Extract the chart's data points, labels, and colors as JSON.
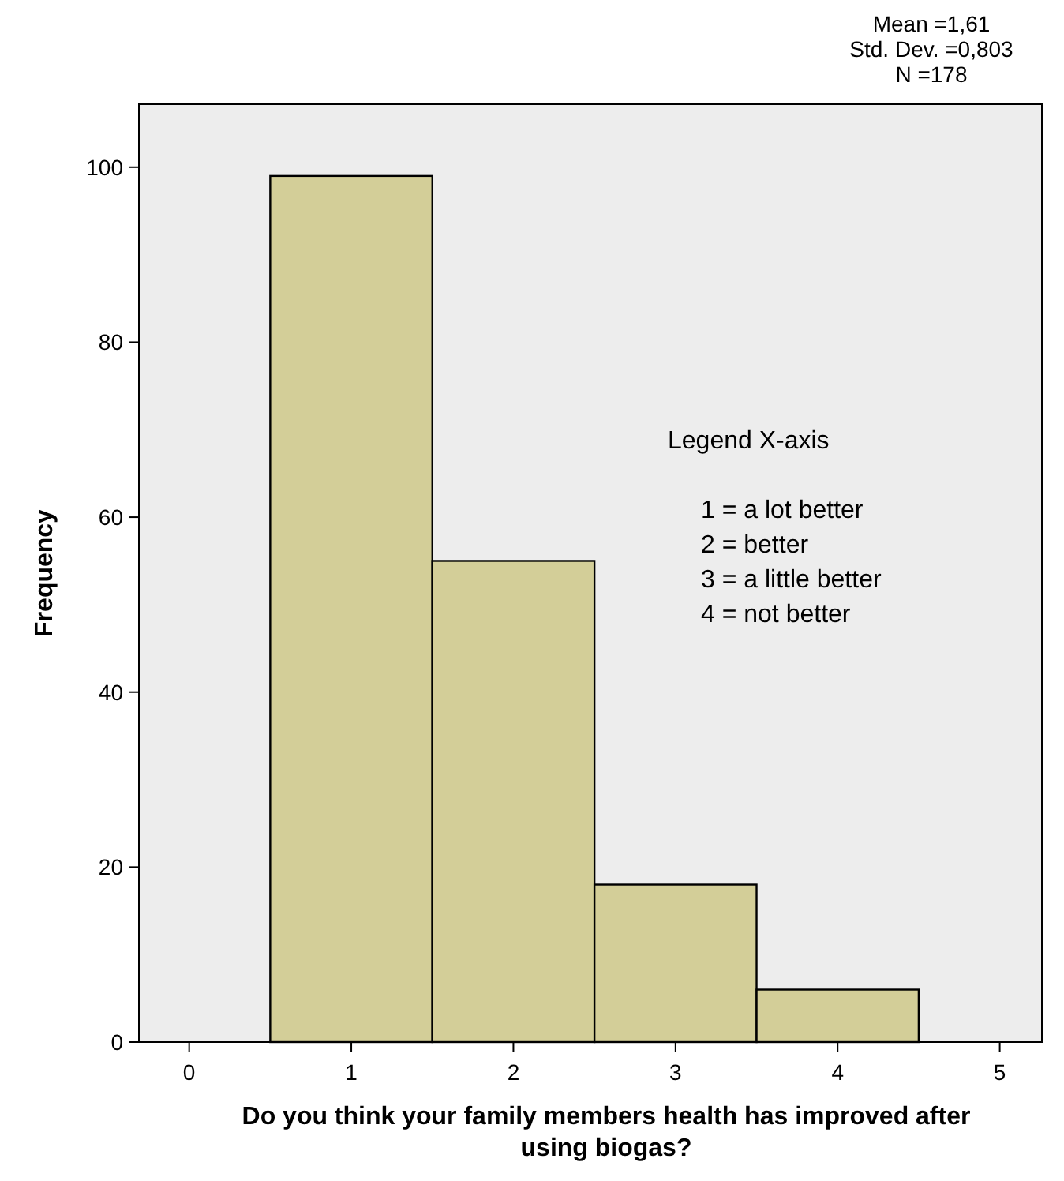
{
  "chart_data": {
    "type": "histogram",
    "xlabel": "Do you think your family members health has improved after using biogas?",
    "ylabel": "Frequency",
    "bins": [
      0.5,
      1.5,
      2.5,
      3.5,
      4.5
    ],
    "values": [
      99,
      55,
      18,
      6
    ],
    "color": "#d3ce98",
    "xlim": [
      -0.31,
      5.26
    ],
    "ylim": [
      0,
      107.2
    ],
    "xticks": [
      0,
      1,
      2,
      3,
      4,
      5
    ],
    "yticks": [
      0,
      20,
      40,
      60,
      80,
      100
    ],
    "grid": false,
    "annotations": [
      "Mean =1,61",
      "Std. Dev. =0,803",
      "N =178",
      "Legend X-axis",
      "1 = a lot better",
      "2 = better",
      "3 = a little better",
      "4 = not better"
    ]
  }
}
